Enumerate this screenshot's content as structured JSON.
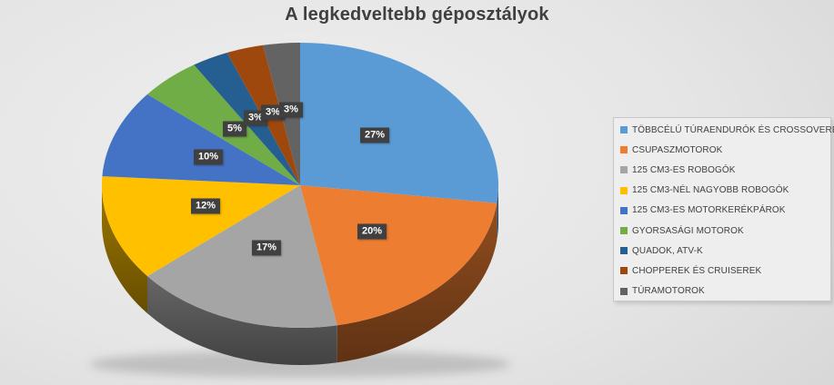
{
  "title": "A legkedveltebb géposztályok",
  "chart_data": {
    "type": "pie",
    "style": "3d",
    "title": "A legkedveltebb géposztályok",
    "unit": "percent",
    "legend_position": "right",
    "categories": [
      "TÖBBCÉLÚ TÚRAENDURÓK ÉS CROSSOVEREK",
      "CSUPASZMOTOROK",
      "125 CM3-ES ROBOGÓK",
      "125 CM3-NÉL NAGYOBB ROBOGÓK",
      "125 CM3-ES MOTORKERÉKPÁROK",
      "GYORSASÁGI MOTOROK",
      "QUADOK, ATV-K",
      "CHOPPEREK ÉS CRUISEREK",
      "TÚRAMOTOROK"
    ],
    "values": [
      27,
      20,
      17,
      12,
      10,
      5,
      3,
      3,
      3
    ],
    "labels": [
      "27%",
      "20%",
      "17%",
      "12%",
      "10%",
      "5%",
      "3%",
      "3%",
      "3%"
    ],
    "colors": [
      "#5B9BD5",
      "#ED7D31",
      "#A5A5A5",
      "#FFC000",
      "#4472C4",
      "#70AD47",
      "#255E91",
      "#9E480E",
      "#636363"
    ],
    "label_style": {
      "background": "#404040",
      "text": "#FFFFFF"
    },
    "title_color": "#404040"
  }
}
